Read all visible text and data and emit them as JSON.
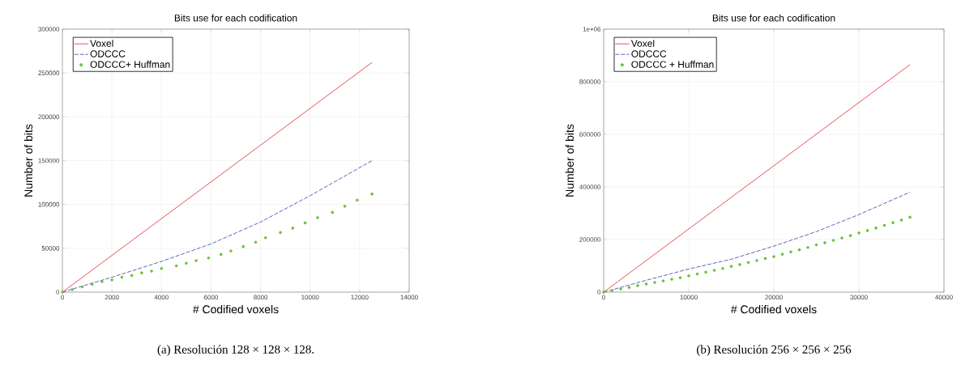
{
  "chart_data": [
    {
      "type": "line",
      "title": "Bits use for each codification",
      "xlabel": "# Codified voxels",
      "ylabel": "Number of bits",
      "annotations": [
        "(a) Resolución 128 × 128 × 128."
      ],
      "xlim": [
        0,
        14000
      ],
      "xticks": [
        0,
        2000,
        4000,
        6000,
        8000,
        10000,
        12000,
        14000
      ],
      "ylim": [
        0,
        300000
      ],
      "yticks": [
        0,
        50000,
        100000,
        150000,
        200000,
        250000,
        300000
      ],
      "grid": true,
      "legend": "top left",
      "series": [
        {
          "name": "Voxel",
          "color": "#e3242b",
          "line_style": "solid",
          "marker": "none",
          "x": [
            0,
            12500
          ],
          "values": [
            0,
            262000
          ]
        },
        {
          "name": "ODCCC",
          "color": "#3a3aa8",
          "line_style": "dashed",
          "marker": "none",
          "x": [
            0,
            2000,
            4000,
            6000,
            8000,
            10000,
            12500
          ],
          "values": [
            0,
            17000,
            35000,
            55000,
            80000,
            110000,
            150000
          ]
        },
        {
          "name": "ODCCC+ Huffman",
          "type": "scatter",
          "color": "#6abf3a",
          "marker": "circle",
          "x": [
            0,
            400,
            800,
            1200,
            1600,
            2000,
            2400,
            2800,
            3200,
            3600,
            4000,
            4600,
            5000,
            5400,
            5900,
            6400,
            6800,
            7300,
            7800,
            8200,
            8800,
            9300,
            9800,
            10300,
            10900,
            11400,
            11900,
            12500
          ],
          "values": [
            0,
            3000,
            6000,
            9000,
            12000,
            14000,
            17000,
            19000,
            22000,
            24000,
            27000,
            30000,
            33000,
            36000,
            39000,
            43000,
            47000,
            52000,
            57000,
            62000,
            68000,
            73000,
            79000,
            85000,
            91000,
            98000,
            105000,
            112000
          ]
        }
      ]
    },
    {
      "type": "line",
      "title": "Bits use for each codification",
      "xlabel": "# Codified voxels",
      "ylabel": "Number of bits",
      "annotations": [
        "(b) Resolución 256 × 256 × 256"
      ],
      "xlim": [
        0,
        40000
      ],
      "xticks": [
        0,
        10000,
        20000,
        30000,
        40000
      ],
      "ylim": [
        0,
        1000000
      ],
      "yticks": [
        0,
        200000,
        400000,
        600000,
        800000,
        {
          "value": 1000000,
          "label": "1e+06"
        }
      ],
      "grid": true,
      "legend": "top left",
      "series": [
        {
          "name": "Voxel",
          "color": "#e3242b",
          "line_style": "solid",
          "marker": "none",
          "x": [
            0,
            36000
          ],
          "values": [
            0,
            865000
          ]
        },
        {
          "name": "ODCCC",
          "color": "#3a3aa8",
          "line_style": "dashed",
          "marker": "none",
          "x": [
            0,
            5000,
            10000,
            15000,
            20000,
            25000,
            30000,
            36000
          ],
          "values": [
            0,
            45000,
            88000,
            125000,
            175000,
            230000,
            295000,
            380000
          ]
        },
        {
          "name": "ODCCC + Huffman",
          "type": "scatter",
          "color": "#6abf3a",
          "marker": "circle",
          "x": [
            0,
            1000,
            2000,
            3000,
            4000,
            5000,
            6000,
            7000,
            8000,
            9000,
            10000,
            11000,
            12000,
            13000,
            14000,
            15000,
            16000,
            17000,
            18000,
            19000,
            20000,
            21000,
            22000,
            23000,
            24000,
            25000,
            26000,
            27000,
            28000,
            29000,
            30000,
            31000,
            32000,
            33000,
            34000,
            35000,
            36000
          ],
          "values": [
            0,
            6000,
            12000,
            18000,
            25000,
            31000,
            37000,
            43000,
            49000,
            55000,
            62000,
            69000,
            76000,
            83000,
            90000,
            98000,
            105000,
            113000,
            120000,
            128000,
            135000,
            144000,
            153000,
            161000,
            170000,
            180000,
            188000,
            197000,
            206000,
            215000,
            225000,
            234000,
            244000,
            254000,
            264000,
            274000,
            285000
          ]
        }
      ]
    }
  ]
}
